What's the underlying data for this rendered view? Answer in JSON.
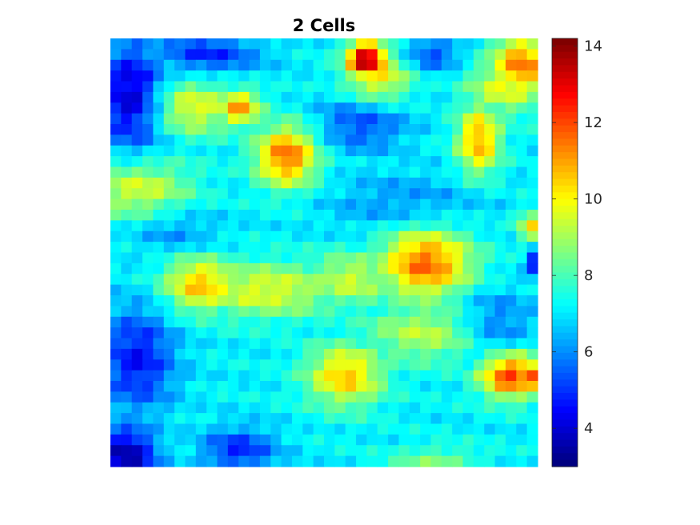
{
  "chart_data": {
    "type": "heatmap",
    "title": "2 Cells",
    "xlabel": "",
    "ylabel": "",
    "colormap": "jet",
    "color_range": [
      3,
      14.2
    ],
    "colorbar_ticks": [
      "4",
      "6",
      "8",
      "10",
      "12",
      "14"
    ],
    "colorbar_tick_values": [
      4,
      6,
      8,
      10,
      12,
      14
    ],
    "grid": false,
    "rows": 40,
    "cols": 40,
    "hotspots": [
      {
        "x": 23.5,
        "y": 1.5,
        "v": 14.2,
        "sx": 1.3,
        "sy": 1.2
      },
      {
        "x": 24.5,
        "y": 3.0,
        "v": 10.2,
        "sx": 2.2,
        "sy": 1.8
      },
      {
        "x": 38.0,
        "y": 2.0,
        "v": 11.5,
        "sx": 2.0,
        "sy": 2.0
      },
      {
        "x": 36.5,
        "y": 4.0,
        "v": 9.8,
        "sx": 2.5,
        "sy": 1.8
      },
      {
        "x": 7.0,
        "y": 6.0,
        "v": 9.8,
        "sx": 3.0,
        "sy": 1.8
      },
      {
        "x": 11.5,
        "y": 6.0,
        "v": 11.0,
        "sx": 1.5,
        "sy": 1.2
      },
      {
        "x": 16.0,
        "y": 10.5,
        "v": 11.7,
        "sx": 2.0,
        "sy": 2.0
      },
      {
        "x": 34.0,
        "y": 9.0,
        "v": 11.0,
        "sx": 1.4,
        "sy": 2.3
      },
      {
        "x": 2.0,
        "y": 13.5,
        "v": 9.6,
        "sx": 3.5,
        "sy": 2.0
      },
      {
        "x": 39.0,
        "y": 17.0,
        "v": 10.0,
        "sx": 1.0,
        "sy": 1.0
      },
      {
        "x": 29.0,
        "y": 20.5,
        "v": 11.7,
        "sx": 3.0,
        "sy": 2.3
      },
      {
        "x": 8.0,
        "y": 22.5,
        "v": 10.7,
        "sx": 2.5,
        "sy": 1.8
      },
      {
        "x": 14.0,
        "y": 23.0,
        "v": 9.7,
        "sx": 5.0,
        "sy": 1.8
      },
      {
        "x": 22.0,
        "y": 22.0,
        "v": 9.4,
        "sx": 3.0,
        "sy": 1.8
      },
      {
        "x": 21.5,
        "y": 31.0,
        "v": 10.6,
        "sx": 2.5,
        "sy": 2.0
      },
      {
        "x": 37.0,
        "y": 31.0,
        "v": 12.2,
        "sx": 2.0,
        "sy": 1.5
      },
      {
        "x": 39.5,
        "y": 31.0,
        "v": 13.2,
        "sx": 0.8,
        "sy": 1.0
      },
      {
        "x": 29.0,
        "y": 27.0,
        "v": 9.2,
        "sx": 4.0,
        "sy": 2.0
      },
      {
        "x": 30.0,
        "y": 39.0,
        "v": 8.5,
        "sx": 3.0,
        "sy": 1.0
      }
    ],
    "coldspots": [
      {
        "x": 1.5,
        "y": 5.0,
        "v": 3.6,
        "sx": 2.2,
        "sy": 3.5
      },
      {
        "x": 8.5,
        "y": 1.0,
        "v": 4.8,
        "sx": 3.5,
        "sy": 1.3
      },
      {
        "x": 23.0,
        "y": 7.5,
        "v": 5.2,
        "sx": 3.0,
        "sy": 1.8
      },
      {
        "x": 29.5,
        "y": 1.0,
        "v": 5.2,
        "sx": 2.0,
        "sy": 1.2
      },
      {
        "x": 39.5,
        "y": 20.5,
        "v": 3.6,
        "sx": 0.7,
        "sy": 0.8
      },
      {
        "x": 2.0,
        "y": 29.5,
        "v": 4.5,
        "sx": 2.5,
        "sy": 3.5
      },
      {
        "x": 1.0,
        "y": 38.5,
        "v": 3.4,
        "sx": 2.0,
        "sy": 2.0
      },
      {
        "x": 11.5,
        "y": 38.0,
        "v": 4.8,
        "sx": 2.5,
        "sy": 1.5
      },
      {
        "x": 35.5,
        "y": 26.0,
        "v": 5.5,
        "sx": 2.5,
        "sy": 2.0
      },
      {
        "x": 27.0,
        "y": 15.0,
        "v": 6.0,
        "sx": 5.0,
        "sy": 2.0
      },
      {
        "x": 5.5,
        "y": 17.5,
        "v": 6.0,
        "sx": 3.0,
        "sy": 1.5
      }
    ],
    "base_value": 7.1
  }
}
